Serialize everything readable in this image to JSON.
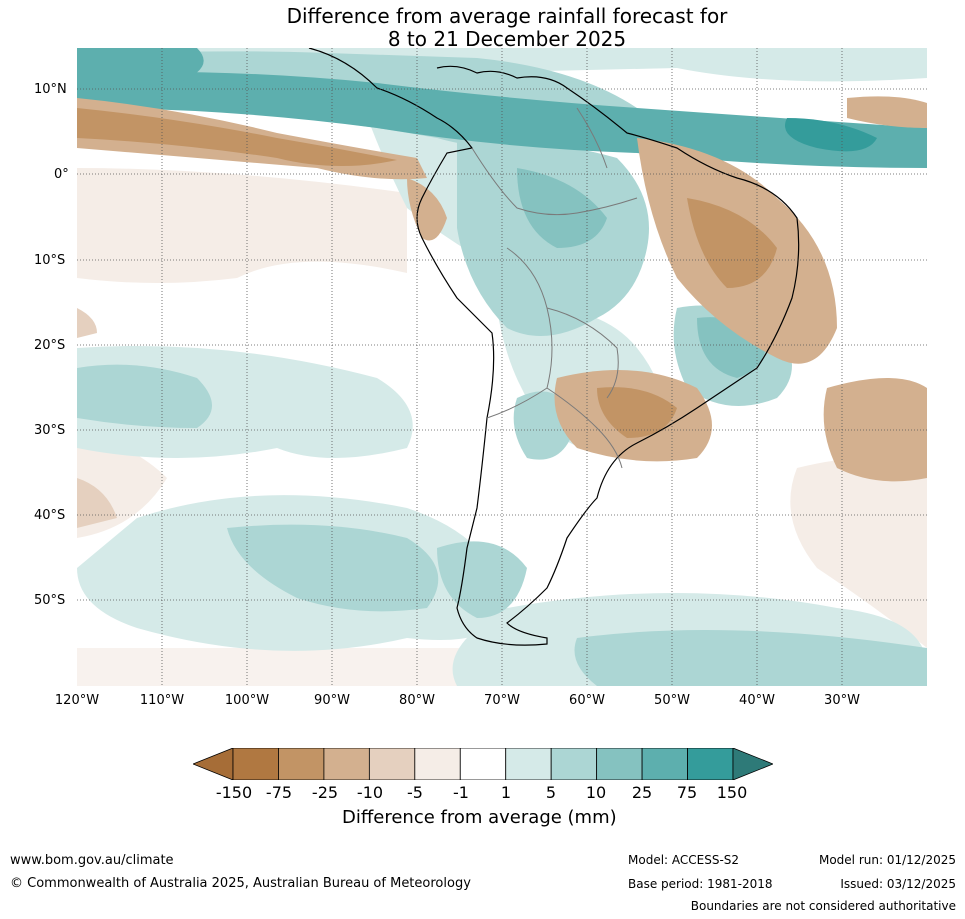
{
  "title": {
    "line1": "Difference from average rainfall forecast for",
    "line2": "8 to 21 December 2025"
  },
  "latitude_labels": [
    "10°N",
    "0°",
    "10°S",
    "20°S",
    "30°S",
    "40°S",
    "50°S"
  ],
  "longitude_labels": [
    "120°W",
    "110°W",
    "100°W",
    "90°W",
    "80°W",
    "70°W",
    "60°W",
    "50°W",
    "40°W",
    "30°W"
  ],
  "colorbar": {
    "ticks": [
      "-150",
      "-75",
      "-25",
      "-10",
      "-5",
      "-1",
      "1",
      "5",
      "10",
      "25",
      "75",
      "150"
    ],
    "colors": [
      "#a66d37",
      "#b07841",
      "#c29465",
      "#d3b08f",
      "#e5d0bf",
      "#f5ede7",
      "#ffffff",
      "#d5eae8",
      "#acd6d4",
      "#85c2c0",
      "#5dafae",
      "#349c9b",
      "#2e7a78"
    ],
    "title": "Difference from average (mm)"
  },
  "footer": {
    "website": "www.bom.gov.au/climate",
    "copyright": "© Commonwealth of Australia 2025, Australian Bureau of Meteorology",
    "model": "Model: ACCESS-S2",
    "base_period": "Base period: 1981-2018",
    "model_run": "Model run: 01/12/2025",
    "issued": "Issued: 03/12/2025",
    "disclaimer": "Boundaries are not considered authoritative"
  }
}
